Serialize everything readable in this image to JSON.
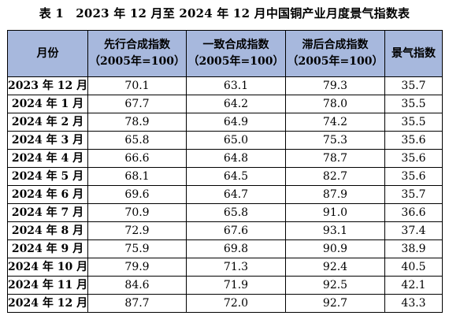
{
  "title": "表 1　2023 年 12 月至 2024 年 12 月中国铜产业月度景气指数表",
  "headers": {
    "month": "月份",
    "leading": [
      "先行合成指数",
      "（2005年=100）"
    ],
    "coincident": [
      "一致合成指数",
      "（2005年=100）"
    ],
    "lagging": [
      "滞后合成指数",
      "（2005年=100）"
    ],
    "climate": "景气指数"
  },
  "rows": [
    [
      "2023 年 12 月",
      "70.1",
      "63.1",
      "79.3",
      "35.7"
    ],
    [
      "2024 年 1 月",
      "67.7",
      "64.2",
      "78.0",
      "35.5"
    ],
    [
      "2024 年 2 月",
      "78.9",
      "64.9",
      "74.2",
      "35.5"
    ],
    [
      "2024 年 3 月",
      "65.8",
      "65.0",
      "75.3",
      "35.6"
    ],
    [
      "2024 年 4 月",
      "66.6",
      "64.8",
      "78.7",
      "35.6"
    ],
    [
      "2024 年 5 月",
      "68.1",
      "64.5",
      "82.7",
      "35.6"
    ],
    [
      "2024 年 6 月",
      "69.6",
      "64.7",
      "87.9",
      "35.7"
    ],
    [
      "2024 年 7 月",
      "70.9",
      "65.8",
      "91.0",
      "36.6"
    ],
    [
      "2024 年 8 月",
      "72.9",
      "67.6",
      "93.1",
      "37.4"
    ],
    [
      "2024 年 9 月",
      "75.9",
      "69.8",
      "90.9",
      "38.9"
    ],
    [
      "2024 年 10 月",
      "79.9",
      "71.3",
      "92.4",
      "40.5"
    ],
    [
      "2024 年 11 月",
      "84.6",
      "71.9",
      "92.5",
      "42.1"
    ],
    [
      "2024 年 12 月",
      "87.7",
      "72.0",
      "92.7",
      "43.3"
    ]
  ],
  "colors": {
    "header_bg": "#a7b8dd",
    "border": "#000000"
  }
}
